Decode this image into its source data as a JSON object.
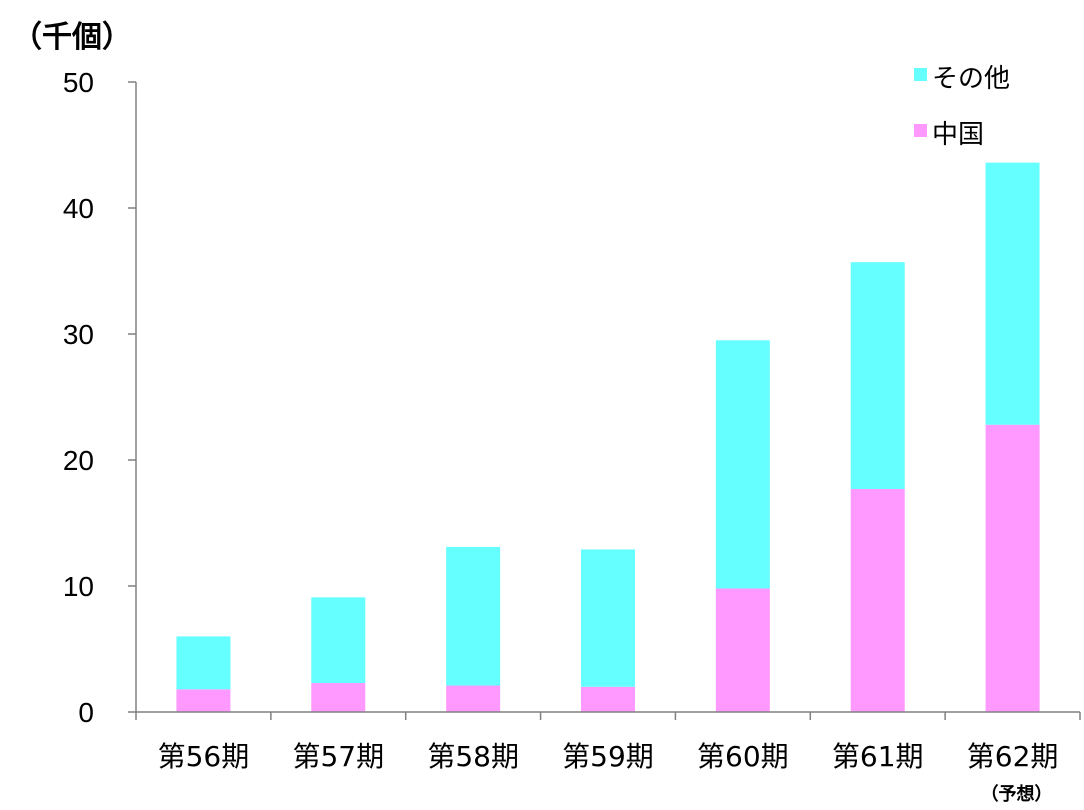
{
  "chart_data": {
    "type": "bar",
    "stacked": true,
    "unit_label": "（千個）",
    "categories": [
      "第56期",
      "第57期",
      "第58期",
      "第59期",
      "第60期",
      "第61期",
      "第62期"
    ],
    "category_notes": [
      "",
      "",
      "",
      "",
      "",
      "",
      "（予想）"
    ],
    "series": [
      {
        "name": "中国",
        "color": "#ff99ff",
        "values": [
          1.8,
          2.3,
          2.1,
          2.0,
          9.8,
          17.7,
          22.8
        ]
      },
      {
        "name": "その他",
        "color": "#66ffff",
        "values": [
          4.2,
          6.8,
          11.0,
          10.9,
          19.7,
          18.0,
          20.8
        ]
      }
    ],
    "legend_order": [
      "その他",
      "中国"
    ],
    "legend_position": "top-right",
    "ylim": [
      0,
      50
    ],
    "yticks": [
      "0",
      "10",
      "20",
      "30",
      "40",
      "50"
    ],
    "grid": false
  }
}
